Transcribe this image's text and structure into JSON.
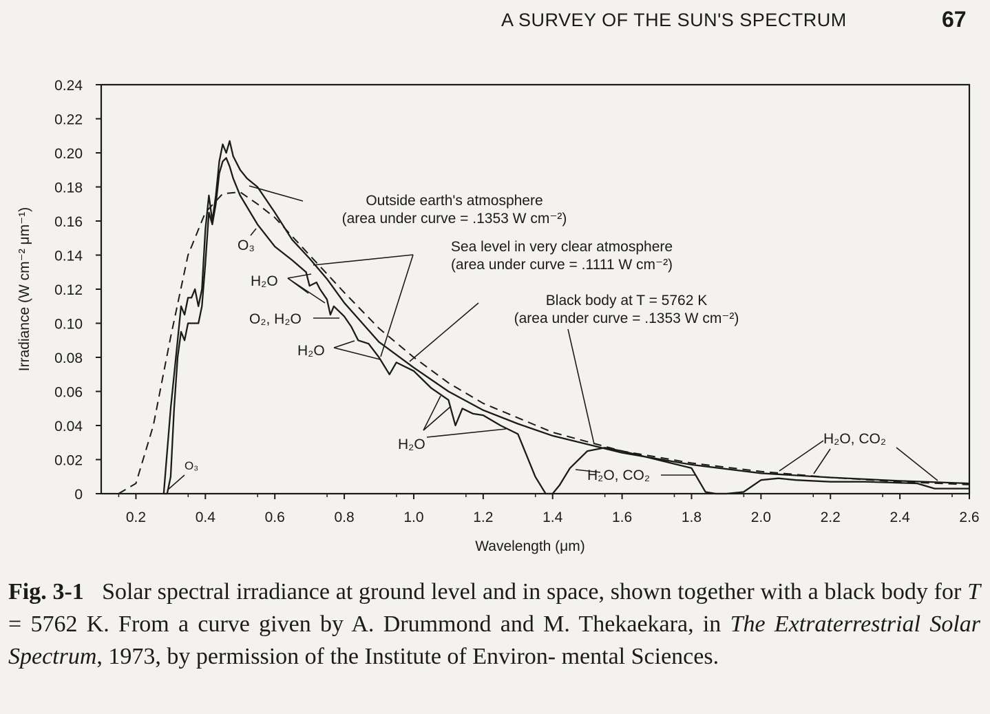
{
  "page": {
    "running_head": "A SURVEY OF THE SUN'S SPECTRUM",
    "page_number": "67"
  },
  "caption": {
    "fig_label": "Fig. 3-1",
    "line1": "Solar spectral irradiance at ground level and in space, shown together with a",
    "line2_pre": "black body for",
    "line2_var": "T",
    "line2_post": "= 5762 K. From a curve given by A. Drummond and M. Thekaekara,",
    "line3_pre": "in",
    "line3_italic": "The Extraterrestrial Solar Spectrum",
    "line3_post": ", 1973, by permission of the Institute of Environ-",
    "line4": "mental Sciences."
  },
  "chart_data": {
    "type": "line",
    "xlabel": "Wavelength (μm)",
    "ylabel": "Irradiance (W cm⁻² μm⁻¹)",
    "xlim": [
      0.1,
      2.6
    ],
    "ylim": [
      0,
      0.24
    ],
    "x_ticks": [
      0.2,
      0.4,
      0.6,
      0.8,
      1.0,
      1.2,
      1.4,
      1.6,
      1.8,
      2.0,
      2.2,
      2.4,
      2.6
    ],
    "x_tick_labels": [
      "0.2",
      "0.4",
      "0.6",
      "0.8",
      "1.0",
      "1.2",
      "1.4",
      "1.6",
      "1.8",
      "2.0",
      "2.2",
      "2.4",
      "2.6"
    ],
    "y_ticks": [
      0,
      0.02,
      0.04,
      0.06,
      0.08,
      0.1,
      0.12,
      0.14,
      0.16,
      0.18,
      0.2,
      0.22,
      0.24
    ],
    "y_tick_labels": [
      "0",
      "0.02",
      "0.04",
      "0.06",
      "0.08",
      "0.10",
      "0.12",
      "0.14",
      "0.16",
      "0.18",
      "0.20",
      "0.22",
      "0.24"
    ],
    "grid": false,
    "series": [
      {
        "key": "outside",
        "style": "solid",
        "x": [
          0.28,
          0.3,
          0.32,
          0.33,
          0.34,
          0.35,
          0.36,
          0.37,
          0.38,
          0.39,
          0.4,
          0.41,
          0.42,
          0.43,
          0.44,
          0.45,
          0.46,
          0.47,
          0.48,
          0.5,
          0.52,
          0.55,
          0.6,
          0.65,
          0.7,
          0.75,
          0.8,
          0.9,
          1.0,
          1.1,
          1.2,
          1.3,
          1.4,
          1.5,
          1.6,
          1.8,
          2.0,
          2.2,
          2.4,
          2.6
        ],
        "y": [
          0.0,
          0.05,
          0.09,
          0.11,
          0.105,
          0.115,
          0.115,
          0.12,
          0.11,
          0.12,
          0.155,
          0.175,
          0.16,
          0.175,
          0.195,
          0.205,
          0.2,
          0.207,
          0.198,
          0.19,
          0.185,
          0.18,
          0.165,
          0.149,
          0.138,
          0.126,
          0.112,
          0.089,
          0.074,
          0.06,
          0.049,
          0.041,
          0.034,
          0.029,
          0.024,
          0.017,
          0.012,
          0.0095,
          0.0075,
          0.006
        ]
      },
      {
        "key": "sea_level",
        "style": "solid",
        "x": [
          0.28,
          0.29,
          0.3,
          0.31,
          0.32,
          0.33,
          0.34,
          0.35,
          0.36,
          0.37,
          0.38,
          0.39,
          0.4,
          0.41,
          0.42,
          0.43,
          0.44,
          0.45,
          0.46,
          0.47,
          0.48,
          0.5,
          0.55,
          0.6,
          0.65,
          0.69,
          0.7,
          0.72,
          0.73,
          0.75,
          0.76,
          0.77,
          0.8,
          0.82,
          0.84,
          0.87,
          0.9,
          0.93,
          0.95,
          0.97,
          1.0,
          1.05,
          1.1,
          1.12,
          1.14,
          1.17,
          1.2,
          1.25,
          1.3,
          1.35,
          1.38,
          1.4,
          1.42,
          1.45,
          1.5,
          1.55,
          1.6,
          1.7,
          1.8,
          1.84,
          1.87,
          1.9,
          1.95,
          2.0,
          2.05,
          2.1,
          2.2,
          2.3,
          2.45,
          2.5,
          2.6
        ],
        "y": [
          0.0,
          0.0,
          0.01,
          0.05,
          0.08,
          0.095,
          0.09,
          0.1,
          0.1,
          0.1,
          0.1,
          0.11,
          0.135,
          0.165,
          0.158,
          0.17,
          0.188,
          0.195,
          0.197,
          0.192,
          0.185,
          0.175,
          0.158,
          0.145,
          0.137,
          0.13,
          0.122,
          0.124,
          0.12,
          0.114,
          0.105,
          0.11,
          0.104,
          0.098,
          0.09,
          0.088,
          0.08,
          0.07,
          0.077,
          0.075,
          0.072,
          0.062,
          0.055,
          0.04,
          0.05,
          0.047,
          0.046,
          0.04,
          0.035,
          0.01,
          0.0,
          0.0,
          0.005,
          0.015,
          0.025,
          0.027,
          0.025,
          0.02,
          0.015,
          0.001,
          0.0,
          0.0,
          0.001,
          0.008,
          0.009,
          0.008,
          0.007,
          0.007,
          0.006,
          0.003,
          0.003
        ]
      },
      {
        "key": "black_body",
        "style": "dashed",
        "x": [
          0.15,
          0.2,
          0.25,
          0.3,
          0.35,
          0.4,
          0.45,
          0.5,
          0.55,
          0.6,
          0.7,
          0.8,
          0.9,
          1.0,
          1.1,
          1.2,
          1.4,
          1.6,
          1.8,
          2.0,
          2.2,
          2.4,
          2.6
        ],
        "y": [
          0.0,
          0.006,
          0.04,
          0.092,
          0.14,
          0.165,
          0.176,
          0.177,
          0.17,
          0.162,
          0.14,
          0.118,
          0.097,
          0.08,
          0.065,
          0.053,
          0.036,
          0.025,
          0.018,
          0.013,
          0.0095,
          0.007,
          0.0053
        ]
      }
    ],
    "annotations": [
      {
        "key": "outside",
        "lines": [
          "Outside earth's atmosphere",
          "(area under curve = .1353 W cm⁻²)"
        ]
      },
      {
        "key": "sea",
        "lines": [
          "Sea level in very clear atmosphere",
          "(area under curve = .1111 W cm⁻²)"
        ]
      },
      {
        "key": "bb",
        "lines": [
          "Black body at T = 5762 K",
          "(area under curve = .1353 W cm⁻²)"
        ]
      },
      {
        "key": "o3_a",
        "lines": [
          "O₃"
        ]
      },
      {
        "key": "h2o_1",
        "lines": [
          "H₂O"
        ]
      },
      {
        "key": "o2h2o",
        "lines": [
          "O₂, H₂O"
        ]
      },
      {
        "key": "h2o_2",
        "lines": [
          "H₂O"
        ]
      },
      {
        "key": "h2o_3",
        "lines": [
          "H₂O"
        ]
      },
      {
        "key": "h2oco2_1",
        "lines": [
          "H₂O, CO₂"
        ]
      },
      {
        "key": "h2oco2_2",
        "lines": [
          "H₂O, CO₂"
        ]
      },
      {
        "key": "o3_b",
        "lines": [
          "O₃"
        ]
      }
    ]
  }
}
